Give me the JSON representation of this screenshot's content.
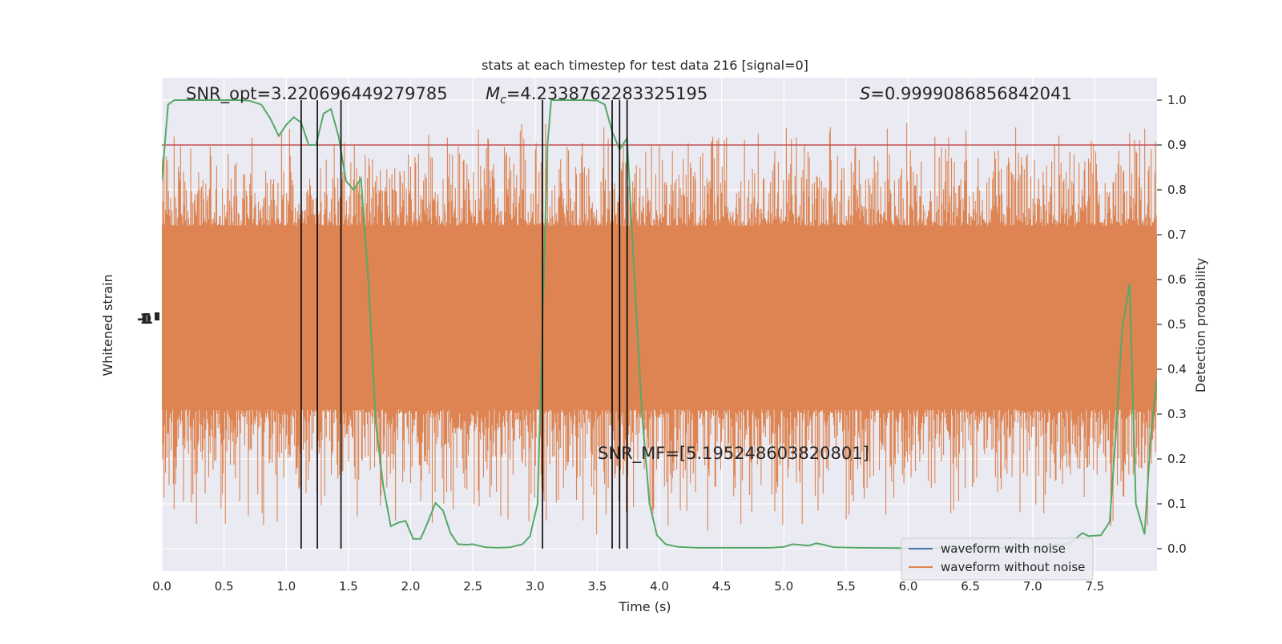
{
  "chart_data": {
    "type": "line",
    "title": "stats at each timestep for test data 216 [signal=0]",
    "xlabel": "Time (s)",
    "ylabel_left": "Whitened strain",
    "ylabel_right": "Detection probability",
    "xlim": [
      0,
      8.0
    ],
    "ylim_right": [
      -0.05,
      1.05
    ],
    "x_ticks": [
      0.0,
      0.5,
      1.0,
      1.5,
      2.0,
      2.5,
      3.0,
      3.5,
      4.0,
      4.5,
      5.0,
      5.5,
      6.0,
      6.5,
      7.0,
      7.5
    ],
    "x_tick_labels": [
      "0.0",
      "0.5",
      "1.0",
      "1.5",
      "2.0",
      "2.5",
      "3.0",
      "3.5",
      "4.0",
      "4.5",
      "5.0",
      "5.5",
      "6.0",
      "6.5",
      "7.0",
      "7.5"
    ],
    "y_ticks_right": [
      0.0,
      0.1,
      0.2,
      0.3,
      0.4,
      0.5,
      0.6,
      0.7,
      0.8,
      0.9,
      1.0
    ],
    "y_tick_labels_right": [
      "0.0",
      "0.1",
      "0.2",
      "0.3",
      "0.4",
      "0.5",
      "0.6",
      "0.7",
      "0.8",
      "0.9",
      "1.0"
    ],
    "grid": true,
    "legend_position": "bottom-right",
    "annotations": {
      "snr_opt": "SNR_opt=3.220696449279785",
      "mc_prefix": "M",
      "mc_sub": "c",
      "mc_value": "=4.2338762283325195",
      "s_prefix": "S",
      "s_value": "=0.9999086856842041",
      "snr_mf": "SNR_MF=[5.195248603820801]"
    },
    "series": [
      {
        "name": "waveform with noise",
        "color": "#4c72b0"
      },
      {
        "name": "waveform without noise",
        "color": "#dd8452"
      }
    ],
    "strain_noise": {
      "color": "#dd8452",
      "core_band": [
        0.33,
        0.7
      ],
      "peak_range": [
        0.03,
        0.96
      ]
    },
    "threshold": {
      "value": 0.9,
      "color": "#c44e52"
    },
    "detection_probability": {
      "color": "#55a868",
      "points": [
        [
          0.0,
          0.82
        ],
        [
          0.05,
          0.99
        ],
        [
          0.1,
          1.0
        ],
        [
          0.2,
          1.0
        ],
        [
          0.3,
          1.0
        ],
        [
          0.4,
          1.0
        ],
        [
          0.5,
          1.0
        ],
        [
          0.6,
          1.0
        ],
        [
          0.7,
          0.999
        ],
        [
          0.8,
          0.99
        ],
        [
          0.87,
          0.96
        ],
        [
          0.94,
          0.92
        ],
        [
          1.0,
          0.945
        ],
        [
          1.06,
          0.962
        ],
        [
          1.12,
          0.95
        ],
        [
          1.18,
          0.9
        ],
        [
          1.24,
          0.9
        ],
        [
          1.3,
          0.97
        ],
        [
          1.36,
          0.98
        ],
        [
          1.42,
          0.92
        ],
        [
          1.48,
          0.82
        ],
        [
          1.54,
          0.8
        ],
        [
          1.6,
          0.825
        ],
        [
          1.66,
          0.6
        ],
        [
          1.72,
          0.28
        ],
        [
          1.78,
          0.14
        ],
        [
          1.84,
          0.05
        ],
        [
          1.9,
          0.058
        ],
        [
          1.96,
          0.062
        ],
        [
          2.02,
          0.022
        ],
        [
          2.08,
          0.022
        ],
        [
          2.14,
          0.06
        ],
        [
          2.2,
          0.102
        ],
        [
          2.26,
          0.085
        ],
        [
          2.32,
          0.035
        ],
        [
          2.38,
          0.01
        ],
        [
          2.45,
          0.009
        ],
        [
          2.5,
          0.01
        ],
        [
          2.6,
          0.003
        ],
        [
          2.7,
          0.002
        ],
        [
          2.8,
          0.003
        ],
        [
          2.9,
          0.01
        ],
        [
          2.96,
          0.028
        ],
        [
          3.02,
          0.1
        ],
        [
          3.06,
          0.5
        ],
        [
          3.1,
          0.9
        ],
        [
          3.13,
          1.0
        ],
        [
          3.2,
          1.0
        ],
        [
          3.3,
          1.0
        ],
        [
          3.4,
          1.0
        ],
        [
          3.5,
          0.999
        ],
        [
          3.56,
          0.99
        ],
        [
          3.62,
          0.93
        ],
        [
          3.68,
          0.89
        ],
        [
          3.74,
          0.915
        ],
        [
          3.8,
          0.6
        ],
        [
          3.86,
          0.3
        ],
        [
          3.92,
          0.1
        ],
        [
          3.98,
          0.03
        ],
        [
          4.05,
          0.01
        ],
        [
          4.15,
          0.004
        ],
        [
          4.3,
          0.002
        ],
        [
          4.5,
          0.002
        ],
        [
          4.7,
          0.002
        ],
        [
          4.9,
          0.002
        ],
        [
          5.0,
          0.004
        ],
        [
          5.07,
          0.01
        ],
        [
          5.15,
          0.008
        ],
        [
          5.2,
          0.007
        ],
        [
          5.26,
          0.012
        ],
        [
          5.32,
          0.009
        ],
        [
          5.4,
          0.003
        ],
        [
          5.6,
          0.002
        ],
        [
          6.0,
          0.001
        ],
        [
          6.5,
          0.001
        ],
        [
          7.0,
          0.002
        ],
        [
          7.3,
          0.012
        ],
        [
          7.4,
          0.035
        ],
        [
          7.45,
          0.028
        ],
        [
          7.55,
          0.03
        ],
        [
          7.62,
          0.06
        ],
        [
          7.68,
          0.3
        ],
        [
          7.72,
          0.49
        ],
        [
          7.78,
          0.59
        ],
        [
          7.83,
          0.1
        ],
        [
          7.9,
          0.032
        ],
        [
          7.95,
          0.25
        ],
        [
          8.0,
          0.38
        ]
      ]
    },
    "vertical_markers": {
      "color": "#000000",
      "x": [
        1.12,
        1.25,
        1.44,
        3.06,
        3.62,
        3.68,
        3.74
      ],
      "y_range": [
        0.0,
        1.0
      ]
    },
    "left_axis_tick_labels": [
      "-1",
      "0",
      "1"
    ]
  }
}
